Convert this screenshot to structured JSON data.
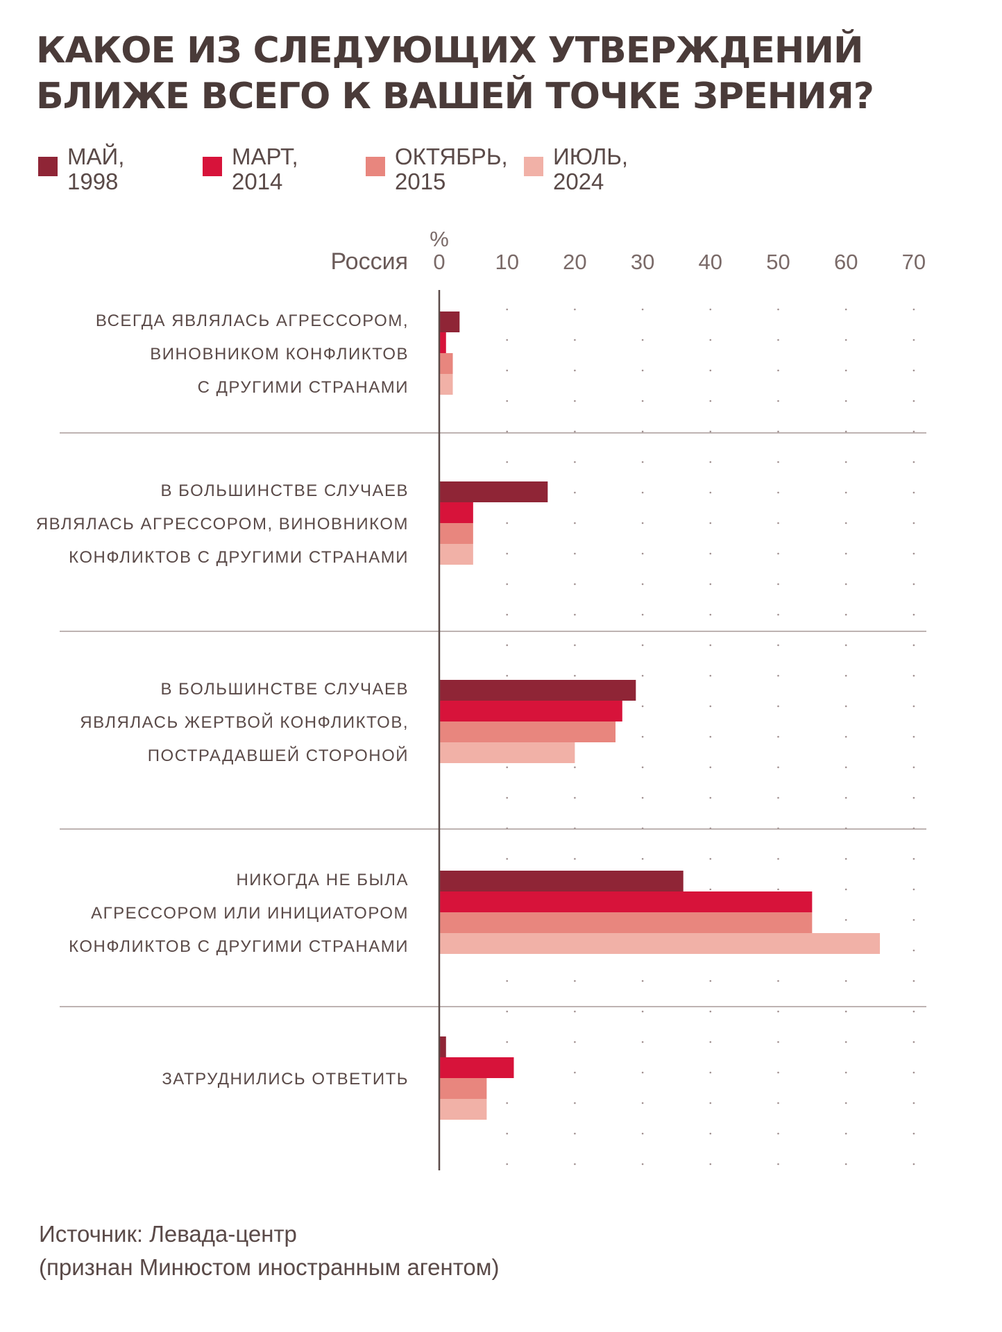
{
  "title": {
    "line1": "КАКОЕ ИЗ СЛЕДУЮЩИХ УТВЕРЖДЕНИЙ",
    "line2": "БЛИЖЕ ВСЕГО К ВАШЕЙ ТОЧКЕ ЗРЕНИЯ?"
  },
  "legend": [
    {
      "line1": "МАЙ,",
      "line2": "1998",
      "color": "#8f2536"
    },
    {
      "line1": "МАРТ,",
      "line2": "2014",
      "color": "#d7133a"
    },
    {
      "line1": "ОКТЯБРЬ,",
      "line2": "2015",
      "color": "#e8867e"
    },
    {
      "line1": "ИЮЛЬ,",
      "line2": "2024",
      "color": "#f1b1a7"
    }
  ],
  "source": {
    "line1": "Источник: Левада-центр",
    "line2": "(признан Минюстом иностранным агентом)"
  },
  "chart_data": {
    "type": "bar",
    "orientation": "horizontal",
    "title": "КАКОЕ ИЗ СЛЕДУЮЩИХ УТВЕРЖДЕНИЙ БЛИЖЕ ВСЕГО К ВАШЕЙ ТОЧКЕ ЗРЕНИЯ?",
    "axis_prefix": "Россия",
    "unit": "%",
    "xlim": [
      0,
      70
    ],
    "ticks": [
      0,
      10,
      20,
      30,
      40,
      50,
      60,
      70
    ],
    "categories": [
      [
        "ВСЕГДА ЯВЛЯЛАСЬ АГРЕССОРОМ,",
        "ВИНОВНИКОМ КОНФЛИКТОВ",
        "С ДРУГИМИ СТРАНАМИ"
      ],
      [
        "В БОЛЬШИНСТВЕ СЛУЧАЕВ",
        "ЯВЛЯЛАСЬ АГРЕССОРОМ, ВИНОВНИКОМ",
        "КОНФЛИКТОВ С ДРУГИМИ СТРАНАМИ"
      ],
      [
        "В БОЛЬШИНСТВЕ СЛУЧАЕВ",
        "ЯВЛЯЛАСЬ ЖЕРТВОЙ КОНФЛИКТОВ,",
        "ПОСТРАДАВШЕЙ СТОРОНОЙ"
      ],
      [
        "НИКОГДА НЕ БЫЛА",
        "АГРЕССОРОМ ИЛИ ИНИЦИАТОРОМ",
        "КОНФЛИКТОВ С ДРУГИМИ СТРАНАМИ"
      ],
      [
        "ЗАТРУДНИЛИСЬ ОТВЕТИТЬ"
      ]
    ],
    "series": [
      {
        "name": "Май, 1998",
        "color": "#8f2536",
        "values": [
          3,
          16,
          29,
          36,
          1
        ]
      },
      {
        "name": "Март, 2014",
        "color": "#d7133a",
        "values": [
          1,
          5,
          27,
          55,
          11
        ]
      },
      {
        "name": "Октябрь, 2015",
        "color": "#e8867e",
        "values": [
          2,
          5,
          26,
          55,
          7
        ]
      },
      {
        "name": "Июль, 2024",
        "color": "#f1b1a7",
        "values": [
          2,
          5,
          20,
          65,
          7
        ]
      }
    ]
  }
}
